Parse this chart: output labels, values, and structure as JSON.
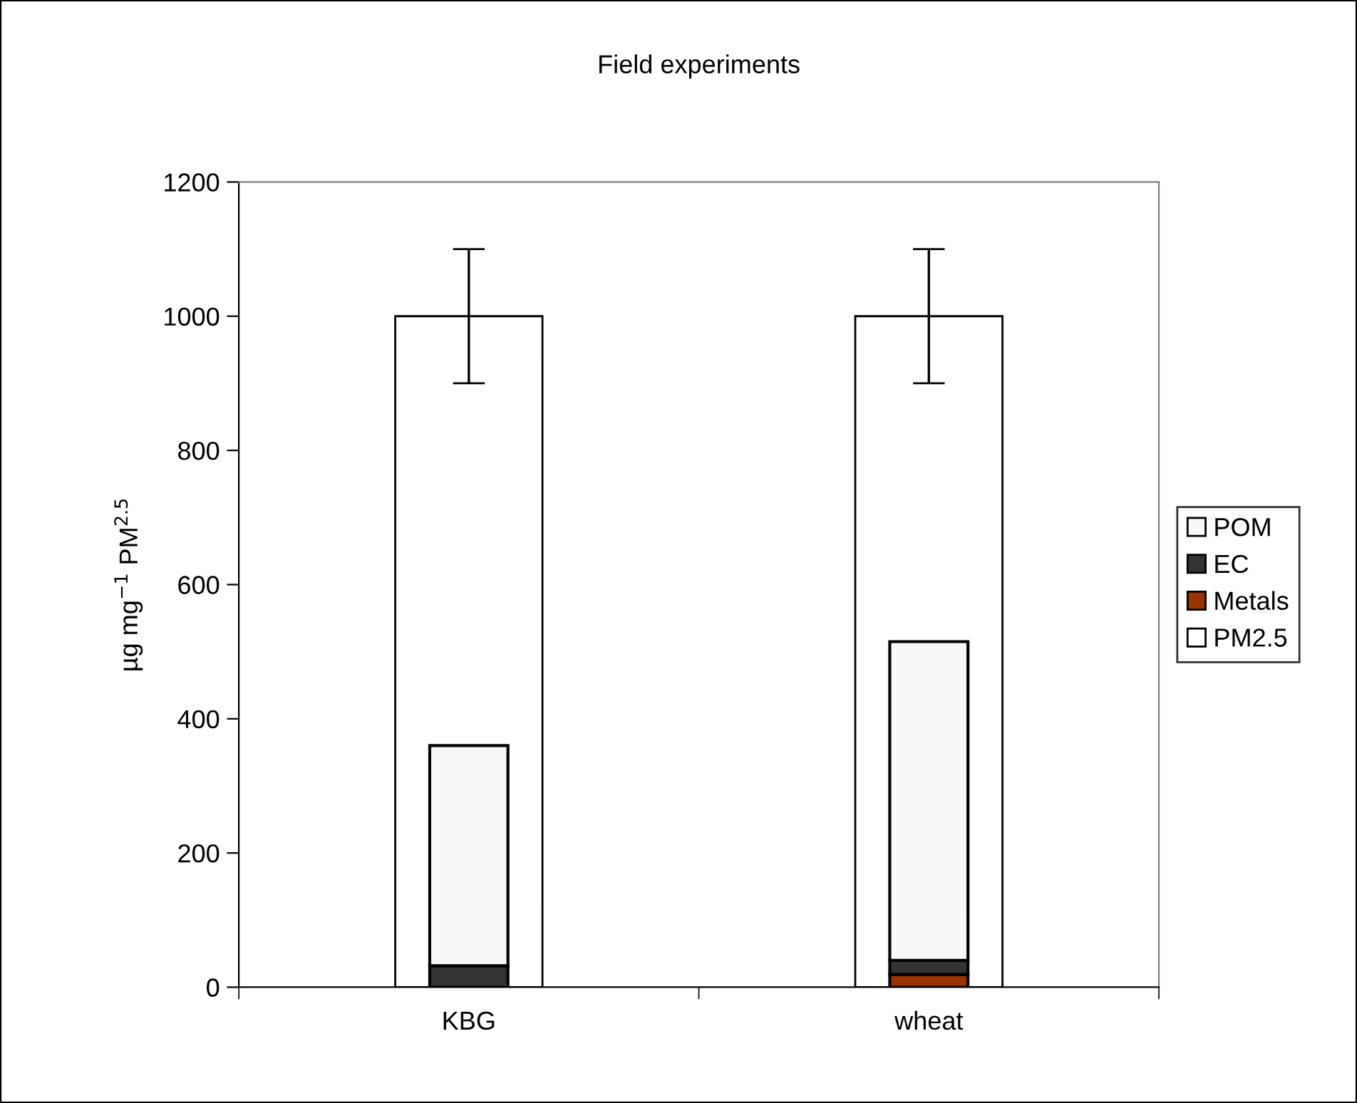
{
  "chart_data": {
    "type": "bar",
    "title": "Field experiments",
    "ylabel": "µg mg$^{−1}$ PM$^{2.5}$",
    "categories": [
      "KBG",
      "wheat"
    ],
    "series": [
      {
        "name": "Metals",
        "color": "#993300",
        "values": [
          null,
          19
        ],
        "base": [
          null,
          0
        ]
      },
      {
        "name": "EC",
        "color": "#333333",
        "values": [
          32,
          21
        ],
        "base": [
          0,
          19
        ]
      },
      {
        "name": "POM",
        "color": "#f8f8f8",
        "values": [
          328,
          475
        ],
        "base": [
          32,
          40
        ]
      },
      {
        "name": "PM2.5",
        "color": "#ffffff",
        "values": [
          1000,
          1000
        ],
        "errors": [
          100,
          100
        ]
      }
    ],
    "ylim": [
      0,
      1200
    ],
    "yticks": [
      0,
      200,
      400,
      600,
      800,
      1000,
      1200
    ],
    "grid": false,
    "legend": "right"
  }
}
